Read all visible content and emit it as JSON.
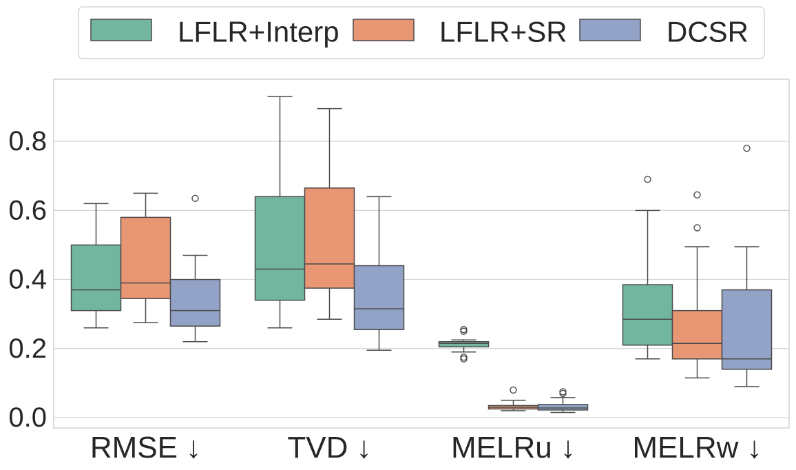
{
  "chart_data": {
    "type": "box",
    "categories": [
      "RMSE ↓",
      "TVD ↓",
      "MELRu ↓",
      "MELRw ↓"
    ],
    "ylim": [
      -0.03,
      0.98
    ],
    "yticks": [
      "0.0",
      "0.2",
      "0.4",
      "0.6",
      "0.8"
    ],
    "ytick_values": [
      0.0,
      0.2,
      0.4,
      0.6,
      0.8
    ],
    "grid": true,
    "legend_position": "top-center",
    "series": [
      {
        "name": "LFLR+Interp",
        "color": "#72b6a0",
        "boxes": [
          {
            "whislo": 0.26,
            "q1": 0.31,
            "med": 0.37,
            "q3": 0.5,
            "whishi": 0.62,
            "fliers": []
          },
          {
            "whislo": 0.26,
            "q1": 0.34,
            "med": 0.43,
            "q3": 0.64,
            "whishi": 0.93,
            "fliers": []
          },
          {
            "whislo": 0.19,
            "q1": 0.205,
            "med": 0.215,
            "q3": 0.22,
            "whishi": 0.225,
            "fliers": [
              0.17,
              0.175,
              0.25,
              0.255
            ]
          },
          {
            "whislo": 0.17,
            "q1": 0.21,
            "med": 0.285,
            "q3": 0.385,
            "whishi": 0.6,
            "fliers": [
              0.69
            ]
          }
        ]
      },
      {
        "name": "LFLR+SR",
        "color": "#e99675",
        "boxes": [
          {
            "whislo": 0.275,
            "q1": 0.345,
            "med": 0.39,
            "q3": 0.58,
            "whishi": 0.65,
            "fliers": []
          },
          {
            "whislo": 0.285,
            "q1": 0.375,
            "med": 0.445,
            "q3": 0.665,
            "whishi": 0.895,
            "fliers": []
          },
          {
            "whislo": 0.02,
            "q1": 0.025,
            "med": 0.03,
            "q3": 0.035,
            "whishi": 0.05,
            "fliers": [
              0.08
            ]
          },
          {
            "whislo": 0.115,
            "q1": 0.17,
            "med": 0.215,
            "q3": 0.31,
            "whishi": 0.495,
            "fliers": [
              0.55,
              0.645
            ]
          }
        ]
      },
      {
        "name": "DCSR",
        "color": "#93a2c7",
        "boxes": [
          {
            "whislo": 0.22,
            "q1": 0.265,
            "med": 0.31,
            "q3": 0.4,
            "whishi": 0.47,
            "fliers": [
              0.635
            ]
          },
          {
            "whislo": 0.195,
            "q1": 0.255,
            "med": 0.315,
            "q3": 0.44,
            "whishi": 0.64,
            "fliers": []
          },
          {
            "whislo": 0.015,
            "q1": 0.022,
            "med": 0.028,
            "q3": 0.038,
            "whishi": 0.058,
            "fliers": [
              0.07,
              0.075
            ]
          },
          {
            "whislo": 0.09,
            "q1": 0.14,
            "med": 0.17,
            "q3": 0.37,
            "whishi": 0.495,
            "fliers": [
              0.78
            ]
          }
        ]
      }
    ]
  }
}
